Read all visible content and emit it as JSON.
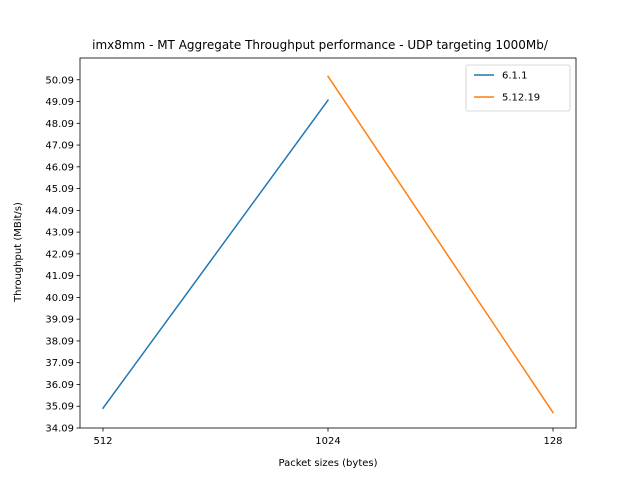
{
  "chart_data": {
    "type": "line",
    "title": "imx8mm - MT Aggregate Throughput performance - UDP targeting 1000Mb/",
    "xlabel": "Packet sizes (bytes)",
    "ylabel": "Throughput (MBit/s)",
    "categories": [
      "512",
      "1024",
      "128"
    ],
    "ylim": [
      34.09,
      51.09
    ],
    "yticks": [
      "34.09",
      "35.09",
      "36.09",
      "37.09",
      "38.09",
      "39.09",
      "40.09",
      "41.09",
      "42.09",
      "43.09",
      "44.09",
      "45.09",
      "46.09",
      "47.09",
      "48.09",
      "49.09",
      "50.09"
    ],
    "grid": false,
    "legend_position": "top-right",
    "series": [
      {
        "name": "6.1.1",
        "color": "#1f77b4",
        "points": [
          [
            "512",
            35.0
          ],
          [
            "1024",
            49.15
          ]
        ]
      },
      {
        "name": "5.12.19",
        "color": "#ff7f0e",
        "points": [
          [
            "1024",
            50.25
          ],
          [
            "128",
            34.8
          ]
        ]
      }
    ]
  }
}
